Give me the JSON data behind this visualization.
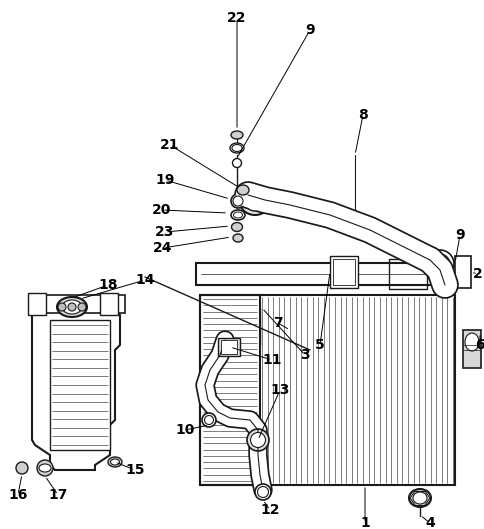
{
  "bg": "#ffffff",
  "lc": "#1a1a1a",
  "lw": 1.1,
  "figsize": [
    4.85,
    5.29
  ],
  "dpi": 100
}
